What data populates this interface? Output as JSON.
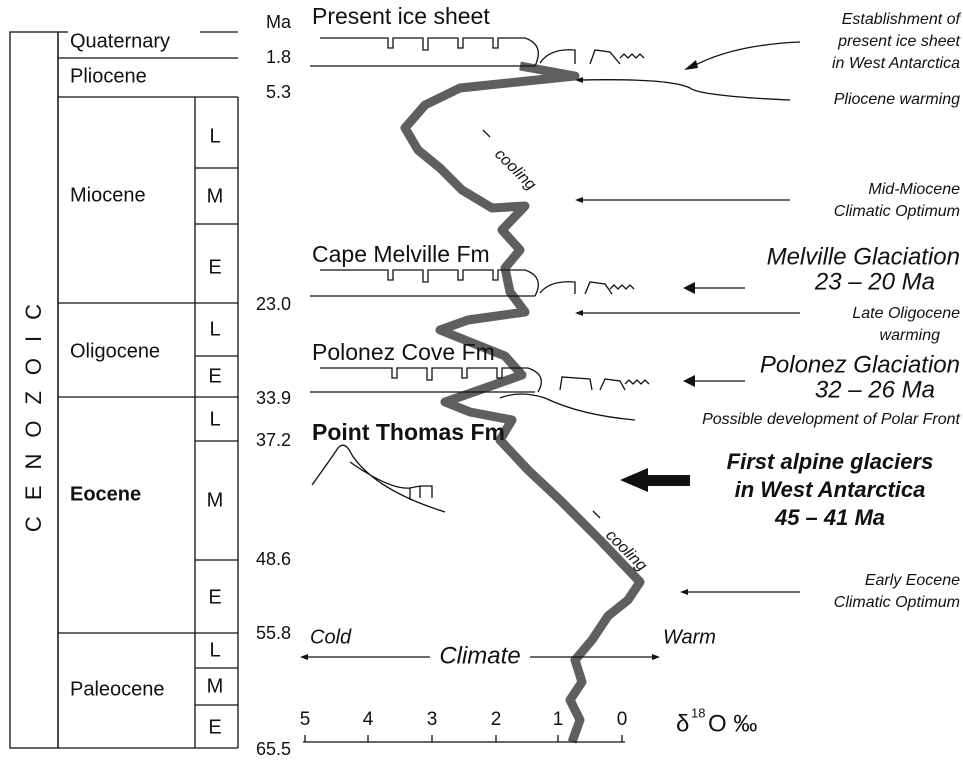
{
  "era": "CENOZOIC",
  "periods": [
    {
      "name": "Quaternary"
    },
    {
      "name": "Pliocene"
    },
    {
      "name": "Miocene",
      "subs": [
        "L",
        "M",
        "E"
      ]
    },
    {
      "name": "Oligocene",
      "subs": [
        "L",
        "E"
      ]
    },
    {
      "name": "Eocene",
      "subs": [
        "L",
        "M",
        "E"
      ]
    },
    {
      "name": "Paleocene",
      "subs": [
        "L",
        "M",
        "E"
      ]
    }
  ],
  "ages": [
    "Ma",
    "1.8",
    "5.3",
    "23.0",
    "33.9",
    "37.2",
    "48.6",
    "55.8",
    "65.5"
  ],
  "formations": [
    "Present ice sheet",
    "Cape Melville Fm",
    "Polonez Cove Fm",
    "Point Thomas Fm"
  ],
  "annotations": {
    "establishment": [
      "Establishment of",
      "present ice sheet",
      "in West Antarctica"
    ],
    "pliocene": [
      "Pliocene warming"
    ],
    "mid_miocene": [
      "Mid-Miocene",
      "Climatic Optimum"
    ],
    "melville": [
      "Melville Glaciation",
      "23 – 20 Ma"
    ],
    "late_oligocene": [
      "Late Oligocene",
      "warming"
    ],
    "polonez": [
      "Polonez Glaciation",
      "32 – 26 Ma"
    ],
    "polar_front": [
      "Possible development of Polar Front"
    ],
    "alpine": [
      "First alpine glaciers",
      "in West Antarctica",
      "45 – 41  Ma"
    ],
    "early_eocene": [
      "Early Eocene",
      "Climatic Optimum"
    ],
    "cooling": [
      "cooling",
      "cooling"
    ]
  },
  "climate": {
    "cold": "Cold",
    "label": "Climate",
    "warm": "Warm"
  },
  "axis": {
    "ticks": [
      "5",
      "4",
      "3",
      "2",
      "1",
      "0"
    ],
    "symbol": "δ",
    "sup": "18",
    "rest": "O ‰"
  }
}
